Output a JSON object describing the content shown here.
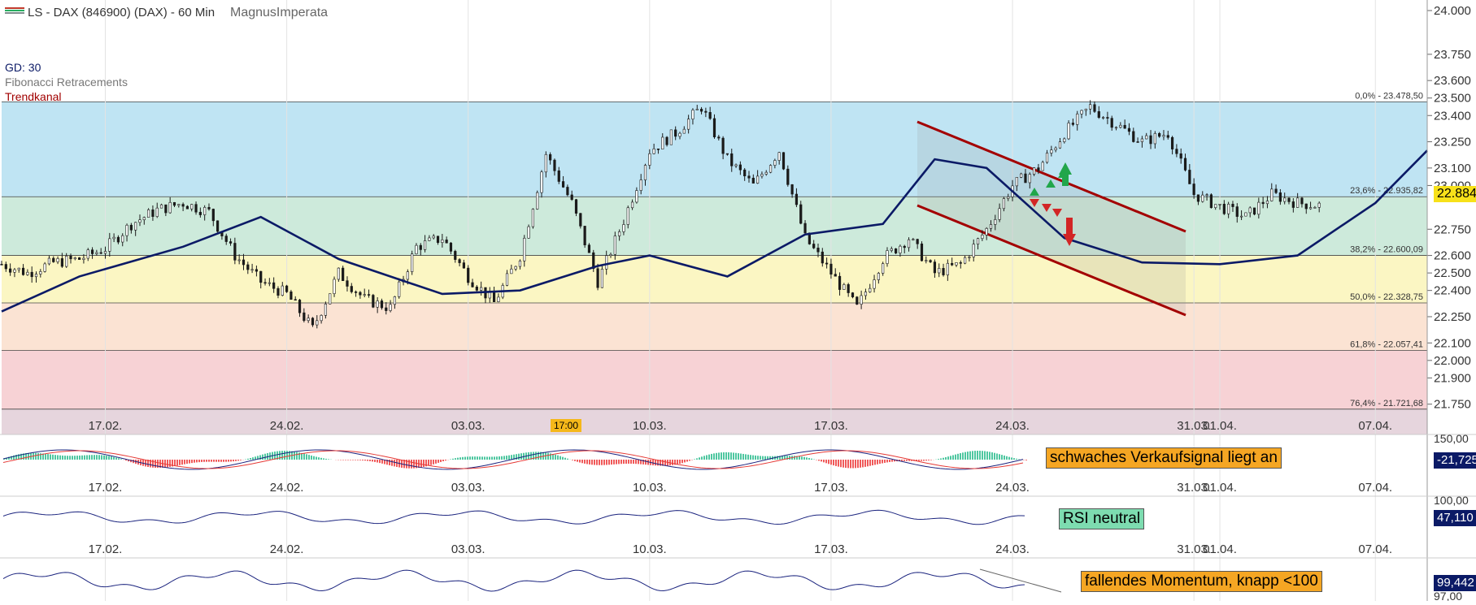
{
  "header": {
    "title": "LS - DAX (846900) (DAX) - 60 Min",
    "author": "MagnusImperata",
    "legend_colors": [
      "#c0392b",
      "#27ae60",
      "#7f8c8d"
    ]
  },
  "indicators": {
    "gd": "GD: 30",
    "fib": "Fibonacci Retracements",
    "trend": "Trendkanal"
  },
  "chart_data": {
    "type": "candlestick",
    "y_range": [
      21600,
      24000
    ],
    "y_ticks": [
      "24.000",
      "23.750",
      "23.600",
      "23.500",
      "23.400",
      "23.250",
      "23.100",
      "23.000",
      "22.750",
      "22.600",
      "22.500",
      "22.400",
      "22.250",
      "22.100",
      "22.000",
      "21.900",
      "21.750"
    ],
    "y_tick_values": [
      24000,
      23750,
      23600,
      23500,
      23400,
      23250,
      23100,
      23000,
      22750,
      22600,
      22500,
      22400,
      22250,
      22100,
      22000,
      21900,
      21750
    ],
    "x_labels": [
      "17.02.",
      "24.02.",
      "03.03.",
      "10.03.",
      "17.03.",
      "24.03.",
      "31.03.",
      "01.04.",
      "07.04."
    ],
    "x_label_dates": [
      "2025-02-17",
      "2025-02-24",
      "2025-03-03",
      "2025-03-10",
      "2025-03-17",
      "2025-03-24",
      "2025-03-31",
      "2025-04-01",
      "2025-04-07"
    ],
    "x_range": [
      "2025-02-13",
      "2025-04-09"
    ],
    "time_badge": "17:00",
    "fib_levels": [
      {
        "label": "0,0% - 23.478,50",
        "value": 23478.5,
        "color": "#bfe4f3"
      },
      {
        "label": "23,6% - 22.935,82",
        "value": 22935.82,
        "color": "#cdeadb"
      },
      {
        "label": "38,2% - 22.600,09",
        "value": 22600.09,
        "color": "#fbf6c3"
      },
      {
        "label": "50,0% - 22.328,75",
        "value": 22328.75,
        "color": "#fbe3d3"
      },
      {
        "label": "61,8% - 22.057,41",
        "value": 22057.41,
        "color": "#f7d2d5"
      },
      {
        "label": "76,4% - 21.721,68",
        "value": 21721.68,
        "color": "#e6d5dd"
      }
    ],
    "close_series": [
      [
        "2025-02-13",
        22550
      ],
      [
        "2025-02-14",
        22500
      ],
      [
        "2025-02-15",
        22560
      ],
      [
        "2025-02-16",
        22580
      ],
      [
        "2025-02-17",
        22640
      ],
      [
        "2025-02-18",
        22780
      ],
      [
        "2025-02-19",
        22860
      ],
      [
        "2025-02-20",
        22900
      ],
      [
        "2025-02-21",
        22850
      ],
      [
        "2025-02-22",
        22600
      ],
      [
        "2025-02-23",
        22450
      ],
      [
        "2025-02-24",
        22380
      ],
      [
        "2025-02-25",
        22180
      ],
      [
        "2025-02-26",
        22500
      ],
      [
        "2025-02-27",
        22350
      ],
      [
        "2025-02-28",
        22300
      ],
      [
        "2025-03-01",
        22650
      ],
      [
        "2025-03-02",
        22700
      ],
      [
        "2025-03-03",
        22480
      ],
      [
        "2025-03-04",
        22330
      ],
      [
        "2025-03-05",
        22600
      ],
      [
        "2025-03-06",
        23180
      ],
      [
        "2025-03-07",
        22900
      ],
      [
        "2025-03-08",
        22450
      ],
      [
        "2025-03-09",
        22800
      ],
      [
        "2025-03-10",
        23200
      ],
      [
        "2025-03-11",
        23300
      ],
      [
        "2025-03-12",
        23450
      ],
      [
        "2025-03-13",
        23150
      ],
      [
        "2025-03-14",
        23000
      ],
      [
        "2025-03-15",
        23200
      ],
      [
        "2025-03-16",
        22700
      ],
      [
        "2025-03-17",
        22500
      ],
      [
        "2025-03-18",
        22300
      ],
      [
        "2025-03-19",
        22580
      ],
      [
        "2025-03-20",
        22700
      ],
      [
        "2025-03-21",
        22500
      ],
      [
        "2025-03-22",
        22550
      ],
      [
        "2025-03-23",
        22750
      ],
      [
        "2025-03-24",
        23000
      ],
      [
        "2025-03-25",
        23100
      ],
      [
        "2025-03-26",
        23300
      ],
      [
        "2025-03-27",
        23450
      ],
      [
        "2025-03-28",
        23350
      ],
      [
        "2025-03-29",
        23250
      ],
      [
        "2025-03-30",
        23300
      ],
      [
        "2025-03-31",
        22950
      ],
      [
        "2025-04-01",
        22880
      ],
      [
        "2025-04-02",
        22820
      ],
      [
        "2025-04-03",
        22950
      ],
      [
        "2025-04-04",
        22900
      ],
      [
        "2025-04-05",
        22884
      ]
    ],
    "moving_average": [
      [
        "2025-02-13",
        22280
      ],
      [
        "2025-02-16",
        22480
      ],
      [
        "2025-02-20",
        22650
      ],
      [
        "2025-02-23",
        22820
      ],
      [
        "2025-02-26",
        22580
      ],
      [
        "2025-03-02",
        22380
      ],
      [
        "2025-03-05",
        22400
      ],
      [
        "2025-03-08",
        22540
      ],
      [
        "2025-03-10",
        22600
      ],
      [
        "2025-03-13",
        22480
      ],
      [
        "2025-03-16",
        22720
      ],
      [
        "2025-03-19",
        22780
      ],
      [
        "2025-03-21",
        23150
      ],
      [
        "2025-03-23",
        23100
      ],
      [
        "2025-03-26",
        22700
      ],
      [
        "2025-03-29",
        22560
      ],
      [
        "2025-04-01",
        22550
      ],
      [
        "2025-04-04",
        22600
      ],
      [
        "2025-04-07",
        22900
      ],
      [
        "2025-04-09",
        23200
      ]
    ],
    "last_price": "22.884"
  },
  "subpanels": {
    "macd": {
      "top_label": "150,00",
      "value": "-21,725",
      "note": "schwaches Verkaufsignal liegt an"
    },
    "rsi": {
      "top_label": "100,00",
      "value": "47,110",
      "note": "RSI neutral"
    },
    "momentum": {
      "value": "99,442",
      "bottom_label": "97,00",
      "note": "fallendes Momentum, knapp <100"
    }
  }
}
